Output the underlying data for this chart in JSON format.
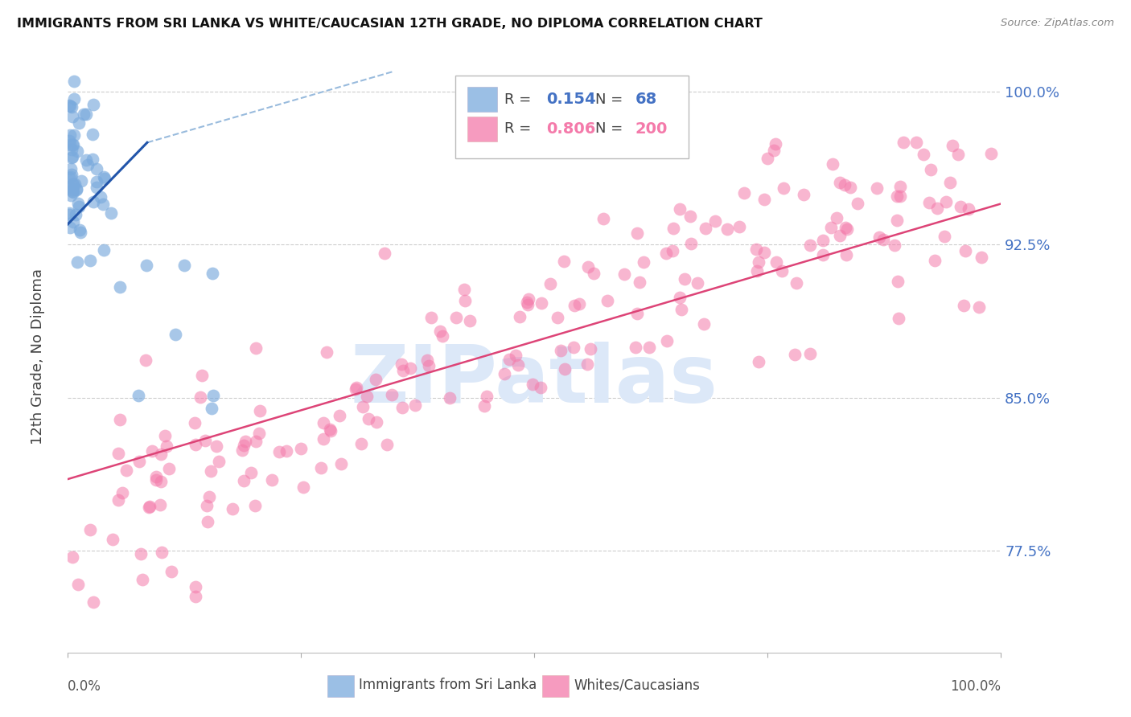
{
  "title": "IMMIGRANTS FROM SRI LANKA VS WHITE/CAUCASIAN 12TH GRADE, NO DIPLOMA CORRELATION CHART",
  "source": "Source: ZipAtlas.com",
  "ylabel": "12th Grade, No Diploma",
  "xlim": [
    0.0,
    1.0
  ],
  "ylim": [
    0.725,
    1.015
  ],
  "yticks": [
    0.775,
    0.85,
    0.925,
    1.0
  ],
  "ytick_labels": [
    "77.5%",
    "85.0%",
    "92.5%",
    "100.0%"
  ],
  "ytick_color": "#4472c4",
  "legend_r_blue": "0.154",
  "legend_n_blue": "68",
  "legend_r_pink": "0.806",
  "legend_n_pink": "200",
  "blue_color": "#7aaadd",
  "pink_color": "#f47aaa",
  "trendline_blue_color": "#2255aa",
  "trendline_pink_color": "#dd4477",
  "dashed_line_color": "#99bbdd",
  "watermark": "ZIPatlas",
  "watermark_color": "#dce8f8",
  "background_color": "#ffffff",
  "grid_color": "#cccccc",
  "title_color": "#111111",
  "source_color": "#888888"
}
